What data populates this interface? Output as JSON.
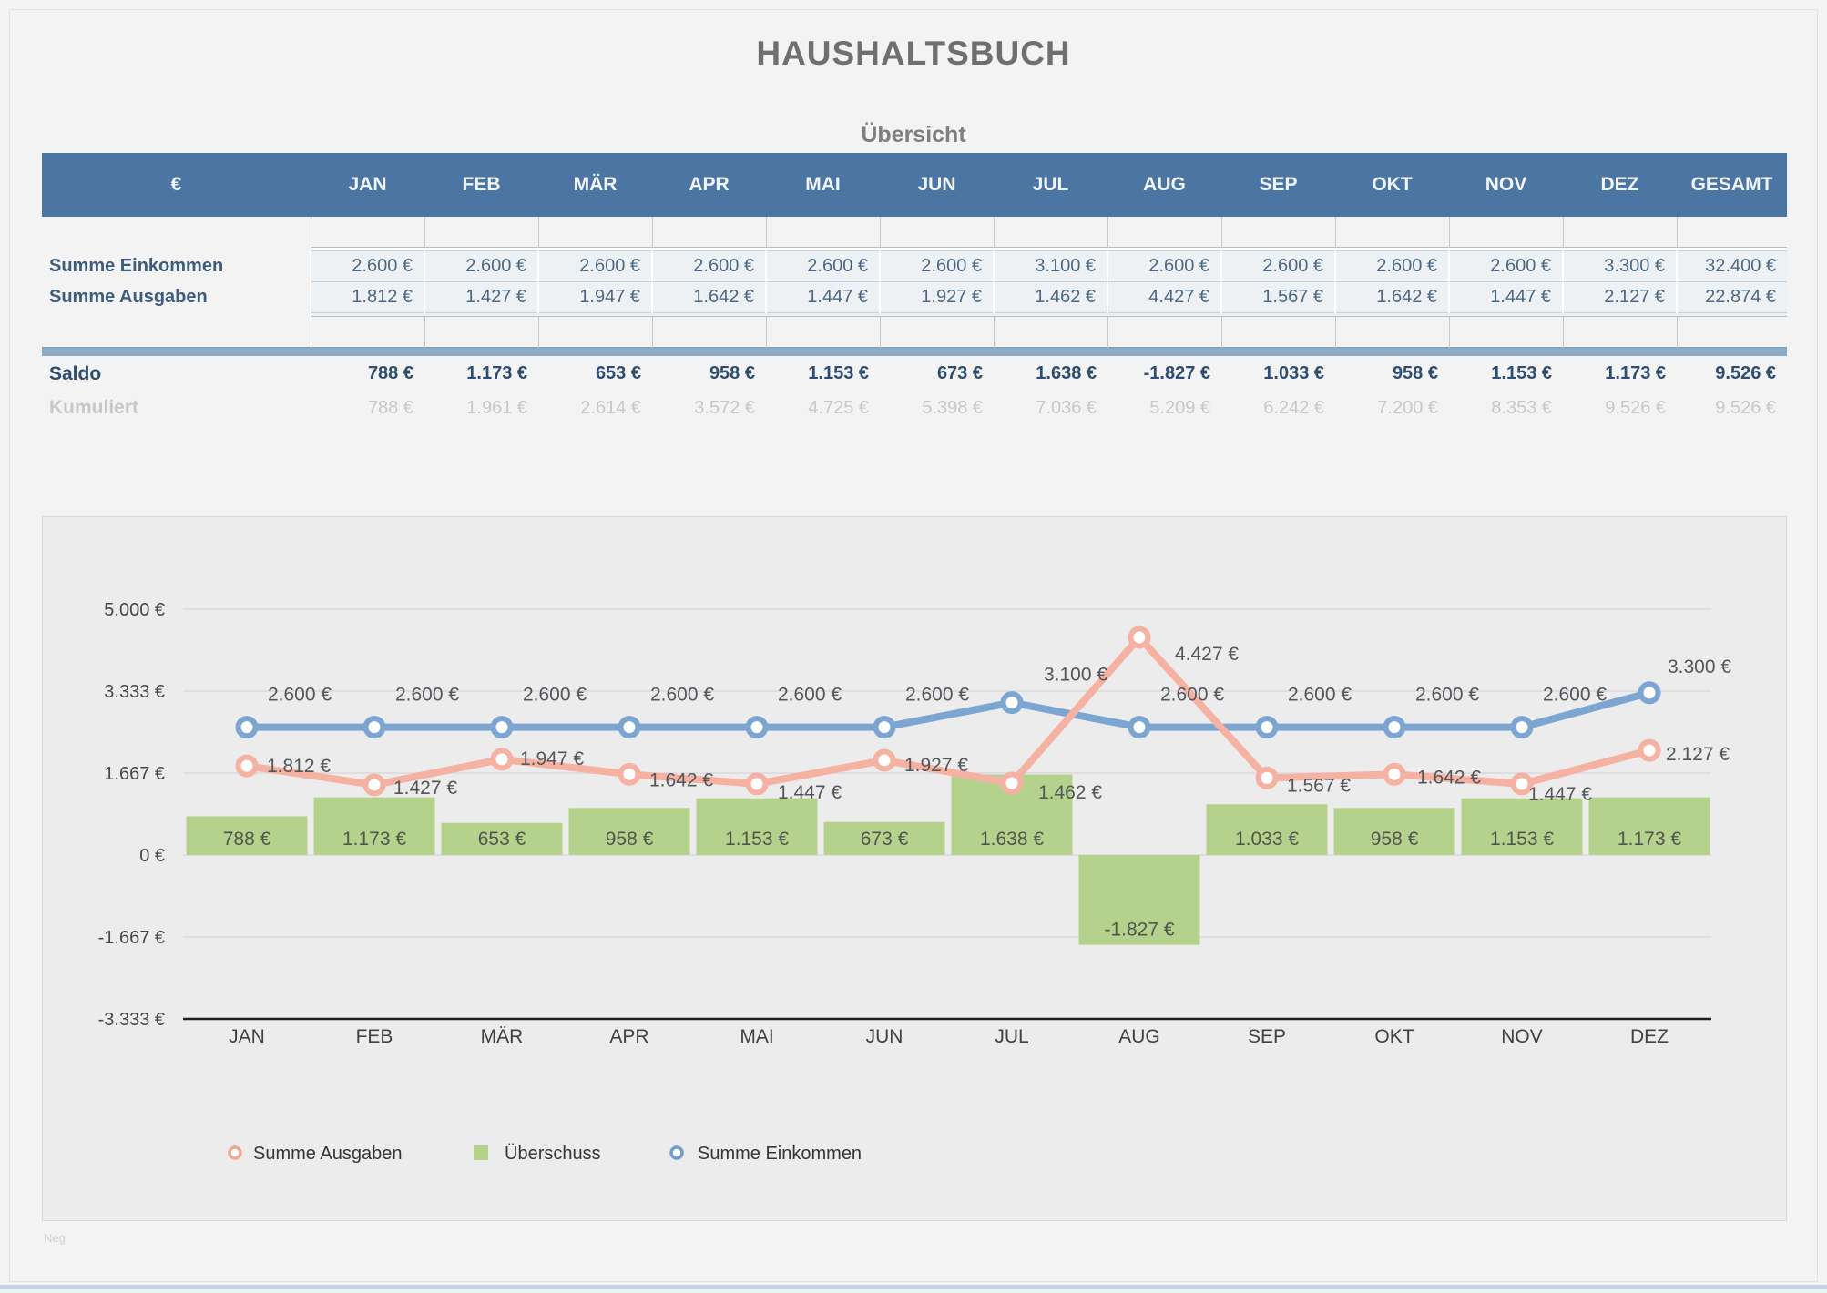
{
  "page": {
    "title": "HAUSHALTSBUCH",
    "subtitle": "Übersicht",
    "watermark": "Neg"
  },
  "table": {
    "columns": [
      "€",
      "JAN",
      "FEB",
      "MÄR",
      "APR",
      "MAI",
      "JUN",
      "JUL",
      "AUG",
      "SEP",
      "OKT",
      "NOV",
      "DEZ",
      "GESAMT"
    ],
    "rows": [
      {
        "id": "einkommen",
        "label": "Summe Einkommen",
        "style": "first",
        "values": [
          "2.600 €",
          "2.600 €",
          "2.600 €",
          "2.600 €",
          "2.600 €",
          "2.600 €",
          "3.100 €",
          "2.600 €",
          "2.600 €",
          "2.600 €",
          "2.600 €",
          "3.300 €",
          "32.400 €"
        ]
      },
      {
        "id": "ausgaben",
        "label": "Summe Ausgaben",
        "style": "second",
        "values": [
          "1.812 €",
          "1.427 €",
          "1.947 €",
          "1.642 €",
          "1.447 €",
          "1.927 €",
          "1.462 €",
          "4.427 €",
          "1.567 €",
          "1.642 €",
          "1.447 €",
          "2.127 €",
          "22.874 €"
        ]
      },
      {
        "id": "saldo",
        "label": "Saldo",
        "style": "saldo",
        "values": [
          "788 €",
          "1.173 €",
          "653 €",
          "958 €",
          "1.153 €",
          "673 €",
          "1.638 €",
          "-1.827 €",
          "1.033 €",
          "958 €",
          "1.153 €",
          "1.173 €",
          "9.526 €"
        ]
      },
      {
        "id": "kumuliert",
        "label": "Kumuliert",
        "style": "kumuliert",
        "values": [
          "788 €",
          "1.961 €",
          "2.614 €",
          "3.572 €",
          "4.725 €",
          "5.398 €",
          "7.036 €",
          "5.209 €",
          "6.242 €",
          "7.200 €",
          "8.353 €",
          "9.526 €",
          "9.526 €"
        ]
      }
    ]
  },
  "chart": {
    "y_ticks": [
      "5.000 €",
      "3.333 €",
      "1.667 €",
      "0 €",
      "-1.667 €",
      "-3.333 €"
    ],
    "x_ticks": [
      "JAN",
      "FEB",
      "MÄR",
      "APR",
      "MAI",
      "JUN",
      "JUL",
      "AUG",
      "SEP",
      "OKT",
      "NOV",
      "DEZ"
    ],
    "legend": [
      {
        "label": "Summe Ausgaben",
        "marker": "ring",
        "color": "#F2A795"
      },
      {
        "label": "Überschuss",
        "marker": "square",
        "color": "#B5D28D"
      },
      {
        "label": "Summe Einkommen",
        "marker": "ring",
        "color": "#6F9EC9"
      }
    ]
  },
  "chart_data": {
    "type": "combo (bar + line)",
    "categories": [
      "JAN",
      "FEB",
      "MÄR",
      "APR",
      "MAI",
      "JUN",
      "JUL",
      "AUG",
      "SEP",
      "OKT",
      "NOV",
      "DEZ"
    ],
    "series": [
      {
        "name": "Summe Einkommen",
        "type": "line",
        "color": "#7CA5D1",
        "values": [
          2600,
          2600,
          2600,
          2600,
          2600,
          2600,
          3100,
          2600,
          2600,
          2600,
          2600,
          3300
        ],
        "labels": [
          "2.600 €",
          "2.600 €",
          "2.600 €",
          "2.600 €",
          "2.600 €",
          "2.600 €",
          "3.100 €",
          "2.600 €",
          "2.600 €",
          "2.600 €",
          "2.600 €",
          "3.300 €"
        ]
      },
      {
        "name": "Summe Ausgaben",
        "type": "line",
        "color": "#F5B2A2",
        "values": [
          1812,
          1427,
          1947,
          1642,
          1447,
          1927,
          1462,
          4427,
          1567,
          1642,
          1447,
          2127
        ],
        "labels": [
          "1.812 €",
          "1.427 €",
          "1.947 €",
          "1.642 €",
          "1.447 €",
          "1.927 €",
          "1.462 €",
          "4.427 €",
          "1.567 €",
          "1.642 €",
          "1.447 €",
          "2.127 €"
        ]
      },
      {
        "name": "Überschuss",
        "type": "bar",
        "color": "#B5D28D",
        "values": [
          788,
          1173,
          653,
          958,
          1153,
          673,
          1638,
          -1827,
          1033,
          958,
          1153,
          1173
        ],
        "labels": [
          "788 €",
          "1.173 €",
          "653 €",
          "958 €",
          "1.153 €",
          "673 €",
          "1.638 €",
          "-1.827 €",
          "1.033 €",
          "958 €",
          "1.153 €",
          "1.173 €"
        ]
      }
    ],
    "ylim": [
      -3333,
      5000
    ],
    "y_tick_values": [
      5000,
      3333,
      1667,
      0,
      -1667,
      -3333
    ],
    "grid": true,
    "legend_position": "bottom",
    "title": "",
    "xlabel": "",
    "ylabel": ""
  },
  "colors": {
    "page_bg": "#F3F3F4",
    "header_bg": "#4B76A4",
    "header_text": "#F1F5F9",
    "cell_fill": "#EDF1F4",
    "row_label": "#3D5B7B",
    "saldo_text": "#2E4D6F",
    "kumuliert_text": "#C4C8CD",
    "divider_bar": "#8CABC4",
    "panel_bg": "#ECECED",
    "gridline": "#DADADB",
    "axis": "#202020",
    "bar_green": "#B5D28D",
    "line_blue": "#7CA5D1",
    "line_pink": "#F5B2A2",
    "data_label": "#54565A"
  }
}
